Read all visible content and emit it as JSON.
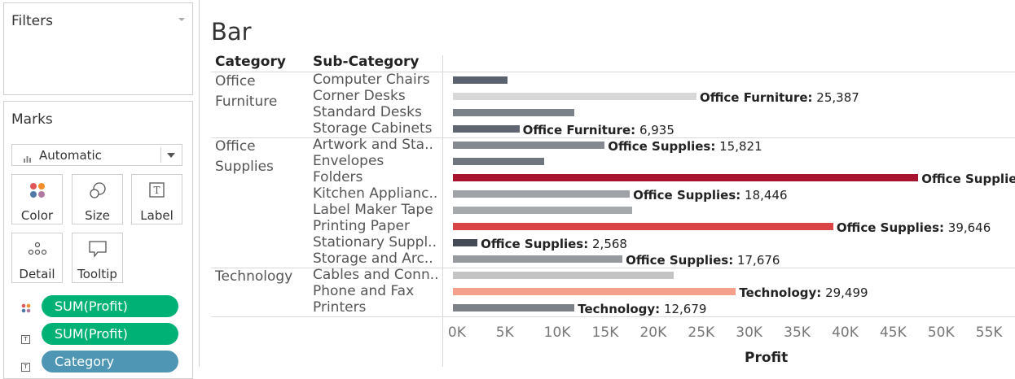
{
  "filters": {
    "title": "Filters"
  },
  "marks": {
    "title": "Marks",
    "mark_type": "Automatic",
    "buttons": [
      {
        "label": "Color",
        "icon": "color-icon"
      },
      {
        "label": "Size",
        "icon": "size-icon"
      },
      {
        "label": "Label",
        "icon": "label-icon"
      },
      {
        "label": "Detail",
        "icon": "detail-icon"
      },
      {
        "label": "Tooltip",
        "icon": "tooltip-icon"
      }
    ],
    "pills": [
      {
        "label": "SUM(Profit)",
        "icon": "color-icon",
        "color": "#00b176"
      },
      {
        "label": "SUM(Profit)",
        "icon": "label-icon",
        "color": "#00b176"
      },
      {
        "label": "Category",
        "icon": "label-icon",
        "color": "#4e96b4"
      }
    ]
  },
  "view": {
    "title": "Bar",
    "headers": {
      "category": "Category",
      "subcategory": "Sub-Category"
    }
  },
  "chart_data": {
    "type": "bar",
    "orientation": "horizontal",
    "title": "Bar",
    "xlabel": "Profit",
    "xlim": [
      -500,
      58500
    ],
    "x_ticks": [
      "0K",
      "5K",
      "10K",
      "15K",
      "20K",
      "25K",
      "30K",
      "35K",
      "40K",
      "45K",
      "50K",
      "55K"
    ],
    "groups": [
      {
        "category_label": "Office\nFurniture",
        "rows": [
          {
            "sub": "Computer Chairs",
            "value": 5700,
            "color": "#5a6270",
            "label": ""
          },
          {
            "sub": "Corner Desks",
            "value": 25387,
            "color": "#d8d8d8",
            "label": "25,387",
            "label_category": "Office Furniture"
          },
          {
            "sub": "Standard Desks",
            "value": 12700,
            "color": "#7a8188",
            "label": ""
          },
          {
            "sub": "Storage Cabinets",
            "value": 6935,
            "color": "#5f6672",
            "label": "6,935",
            "label_category": "Office Furniture"
          }
        ]
      },
      {
        "category_label": "Office\nSupplies",
        "rows": [
          {
            "sub": "Artwork and Sta..",
            "value": 15821,
            "color": "#83898e",
            "label": "15,821",
            "label_category": "Office Supplies"
          },
          {
            "sub": "Envelopes",
            "value": 9500,
            "color": "#6f767d",
            "label": ""
          },
          {
            "sub": "Folders",
            "value": 48500,
            "color": "#a8132f",
            "label": "",
            "label_category": "Office Supplies"
          },
          {
            "sub": "Kitchen Applianc..",
            "value": 18446,
            "color": "#9ea2a6",
            "label": "18,446",
            "label_category": "Office Supplies"
          },
          {
            "sub": "Label Maker Tape",
            "value": 18700,
            "color": "#a6a9ac",
            "label": ""
          },
          {
            "sub": "Printing Paper",
            "value": 39646,
            "color": "#d94545",
            "label": "39,646",
            "label_category": "Office Supplies"
          },
          {
            "sub": "Stationary Suppl..",
            "value": 2568,
            "color": "#444b57",
            "label": "2,568",
            "label_category": "Office Supplies"
          },
          {
            "sub": "Storage and Arc..",
            "value": 17676,
            "color": "#969a9e",
            "label": "17,676",
            "label_category": "Office Supplies"
          }
        ]
      },
      {
        "category_label": "Technology",
        "rows": [
          {
            "sub": "Cables and Conn..",
            "value": 23000,
            "color": "#c4c4c4",
            "label": ""
          },
          {
            "sub": "Phone and Fax",
            "value": 29499,
            "color": "#f4a08a",
            "label": "29,499",
            "label_category": "Technology"
          },
          {
            "sub": "Printers",
            "value": 12679,
            "color": "#7b8187",
            "label": "12,679",
            "label_category": "Technology"
          }
        ]
      }
    ]
  }
}
